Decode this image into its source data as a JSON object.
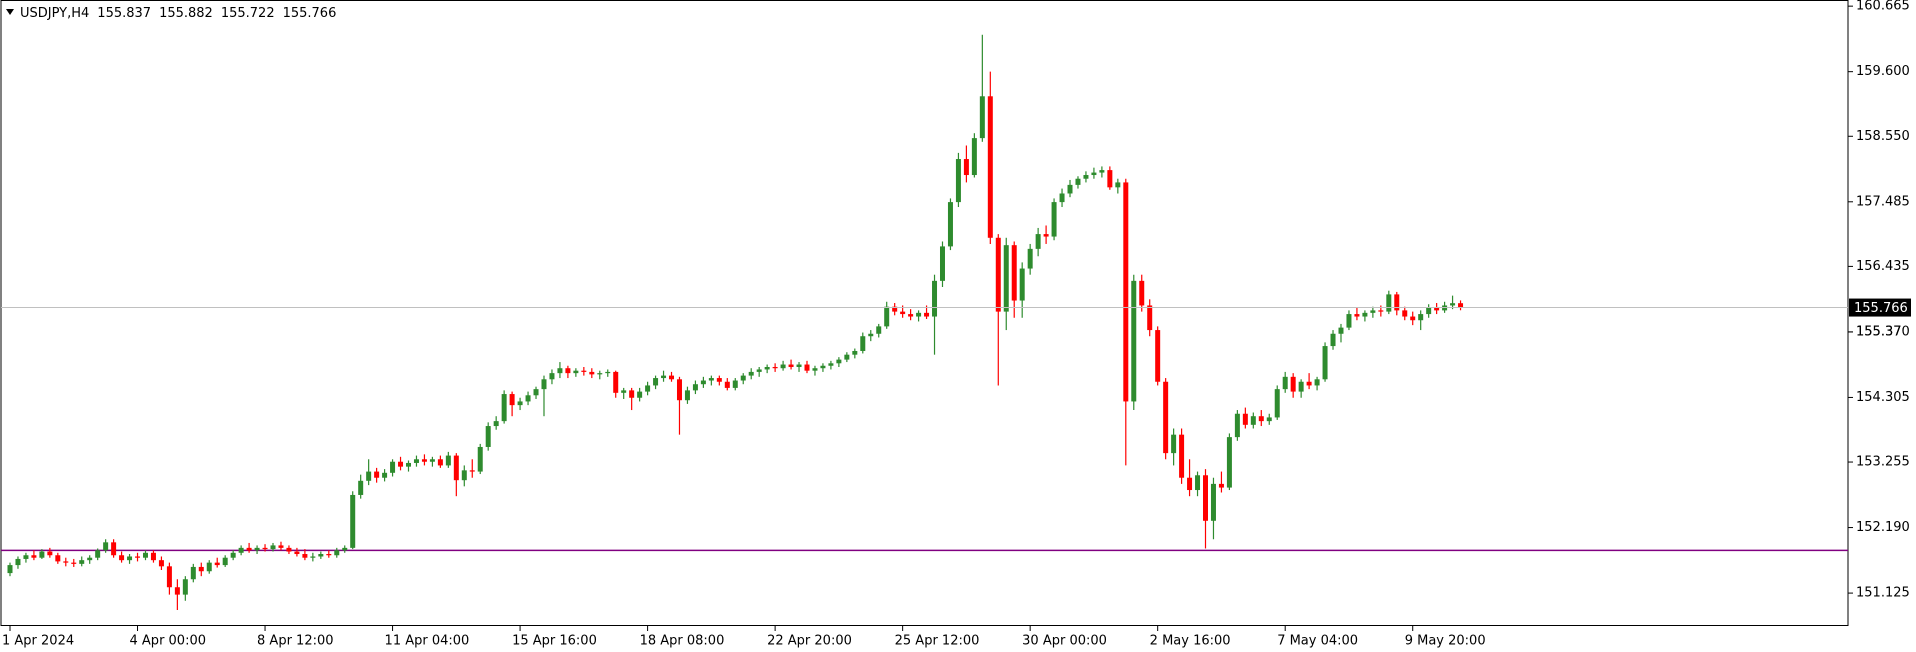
{
  "chart_data": {
    "type": "candlestick",
    "symbol": "USDJPY,H4",
    "up_color": "#2e8b2e",
    "down_color": "#ff0000",
    "price_line_color": "#c0c0c0",
    "level": 151.82,
    "level_color": "#800080",
    "ylim": [
      150.59,
      160.765
    ],
    "yticks": [
      151.125,
      {
        "value": 152.19,
        "label": "152.190"
      },
      153.255,
      154.305,
      155.37,
      {
        "value": 155.37,
        "label": "155.370"
      },
      156.435,
      157.485,
      {
        "value": 158.55,
        "label": "158.550"
      },
      {
        "value": 159.6,
        "label": "159.600"
      },
      160.665
    ],
    "xticks": [
      {
        "value": 0,
        "label": "1 Apr 2024"
      },
      {
        "value": 16,
        "label": "4 Apr 00:00"
      },
      {
        "value": 32,
        "label": "8 Apr 12:00"
      },
      {
        "value": 48,
        "label": "11 Apr 04:00"
      },
      {
        "value": 64,
        "label": "15 Apr 16:00"
      },
      {
        "value": 80,
        "label": "18 Apr 08:00"
      },
      {
        "value": 96,
        "label": "22 Apr 20:00"
      },
      {
        "value": 112,
        "label": "25 Apr 12:00"
      },
      {
        "value": 128,
        "label": "30 Apr 00:00"
      },
      {
        "value": 144,
        "label": "2 May 16:00"
      },
      {
        "value": 160,
        "label": "7 May 04:00"
      },
      {
        "value": 176,
        "label": "9 May 20:00"
      }
    ],
    "ohlc": [
      [
        151.45,
        151.62,
        151.4,
        151.58
      ],
      [
        151.58,
        151.72,
        151.52,
        151.68
      ],
      [
        151.68,
        151.78,
        151.62,
        151.74
      ],
      [
        151.74,
        151.82,
        151.66,
        151.7
      ],
      [
        151.7,
        151.84,
        151.68,
        151.8
      ],
      [
        151.8,
        151.86,
        151.7,
        151.74
      ],
      [
        151.74,
        151.78,
        151.6,
        151.64
      ],
      [
        151.64,
        151.7,
        151.56,
        151.62
      ],
      [
        151.62,
        151.68,
        151.55,
        151.6
      ],
      [
        151.6,
        151.72,
        151.56,
        151.66
      ],
      [
        151.66,
        151.74,
        151.6,
        151.7
      ],
      [
        151.7,
        151.85,
        151.66,
        151.82
      ],
      [
        151.82,
        152.0,
        151.78,
        151.95
      ],
      [
        151.95,
        152.0,
        151.7,
        151.74
      ],
      [
        151.74,
        151.8,
        151.62,
        151.66
      ],
      [
        151.66,
        151.76,
        151.6,
        151.72
      ],
      [
        151.72,
        151.78,
        151.64,
        151.7
      ],
      [
        151.7,
        151.82,
        151.66,
        151.78
      ],
      [
        151.78,
        151.82,
        151.62,
        151.66
      ],
      [
        151.66,
        151.72,
        151.5,
        151.56
      ],
      [
        151.56,
        151.62,
        151.1,
        151.22
      ],
      [
        151.22,
        151.35,
        150.85,
        151.1
      ],
      [
        151.1,
        151.4,
        151.0,
        151.35
      ],
      [
        151.35,
        151.6,
        151.3,
        151.55
      ],
      [
        151.55,
        151.62,
        151.4,
        151.48
      ],
      [
        151.48,
        151.66,
        151.44,
        151.62
      ],
      [
        151.62,
        151.7,
        151.54,
        151.58
      ],
      [
        151.58,
        151.74,
        151.55,
        151.7
      ],
      [
        151.7,
        151.82,
        151.66,
        151.78
      ],
      [
        151.78,
        151.9,
        151.74,
        151.86
      ],
      [
        151.86,
        151.94,
        151.78,
        151.82
      ],
      [
        151.82,
        151.9,
        151.76,
        151.86
      ],
      [
        151.86,
        151.92,
        151.8,
        151.84
      ],
      [
        151.84,
        151.94,
        151.8,
        151.9
      ],
      [
        151.9,
        151.96,
        151.82,
        151.86
      ],
      [
        151.86,
        151.9,
        151.76,
        151.8
      ],
      [
        151.8,
        151.86,
        151.72,
        151.76
      ],
      [
        151.76,
        151.84,
        151.66,
        151.7
      ],
      [
        151.7,
        151.78,
        151.64,
        151.72
      ],
      [
        151.72,
        151.8,
        151.68,
        151.76
      ],
      [
        151.76,
        151.82,
        151.7,
        151.74
      ],
      [
        151.74,
        151.86,
        151.7,
        151.82
      ],
      [
        151.82,
        151.9,
        151.78,
        151.86
      ],
      [
        151.86,
        152.78,
        151.84,
        152.72
      ],
      [
        152.72,
        153.05,
        152.66,
        152.95
      ],
      [
        152.95,
        153.3,
        152.88,
        153.1
      ],
      [
        153.1,
        153.16,
        152.92,
        153.0
      ],
      [
        153.0,
        153.14,
        152.94,
        153.08
      ],
      [
        153.08,
        153.3,
        153.02,
        153.26
      ],
      [
        153.26,
        153.34,
        153.12,
        153.18
      ],
      [
        153.18,
        153.28,
        153.1,
        153.24
      ],
      [
        153.24,
        153.36,
        153.18,
        153.3
      ],
      [
        153.3,
        153.38,
        153.2,
        153.26
      ],
      [
        153.26,
        153.34,
        153.18,
        153.3
      ],
      [
        153.3,
        153.36,
        153.16,
        153.2
      ],
      [
        153.2,
        153.42,
        153.16,
        153.36
      ],
      [
        153.36,
        153.4,
        152.7,
        152.96
      ],
      [
        152.96,
        153.2,
        152.86,
        153.12
      ],
      [
        153.12,
        153.3,
        153.0,
        153.1
      ],
      [
        153.1,
        153.55,
        153.06,
        153.5
      ],
      [
        153.5,
        153.9,
        153.44,
        153.84
      ],
      [
        153.84,
        154.0,
        153.78,
        153.92
      ],
      [
        153.92,
        154.42,
        153.88,
        154.36
      ],
      [
        154.36,
        154.4,
        154.0,
        154.18
      ],
      [
        154.18,
        154.3,
        154.1,
        154.24
      ],
      [
        154.24,
        154.4,
        154.18,
        154.34
      ],
      [
        154.34,
        154.48,
        154.28,
        154.44
      ],
      [
        154.44,
        154.66,
        154.0,
        154.6
      ],
      [
        154.6,
        154.76,
        154.52,
        154.7
      ],
      [
        154.7,
        154.88,
        154.62,
        154.78
      ],
      [
        154.78,
        154.82,
        154.62,
        154.7
      ],
      [
        154.7,
        154.78,
        154.64,
        154.74
      ],
      [
        154.74,
        154.8,
        154.66,
        154.72
      ],
      [
        154.72,
        154.78,
        154.62,
        154.68
      ],
      [
        154.68,
        154.74,
        154.6,
        154.7
      ],
      [
        154.7,
        154.76,
        154.64,
        154.72
      ],
      [
        154.72,
        154.74,
        154.3,
        154.38
      ],
      [
        154.38,
        154.46,
        154.28,
        154.42
      ],
      [
        154.42,
        154.46,
        154.1,
        154.3
      ],
      [
        154.3,
        154.46,
        154.24,
        154.4
      ],
      [
        154.4,
        154.56,
        154.34,
        154.5
      ],
      [
        154.5,
        154.66,
        154.44,
        154.62
      ],
      [
        154.62,
        154.74,
        154.56,
        154.66
      ],
      [
        154.66,
        154.72,
        154.56,
        154.6
      ],
      [
        154.6,
        154.64,
        153.7,
        154.26
      ],
      [
        154.26,
        154.48,
        154.2,
        154.42
      ],
      [
        154.42,
        154.58,
        154.36,
        154.52
      ],
      [
        154.52,
        154.64,
        154.46,
        154.58
      ],
      [
        154.58,
        154.66,
        154.5,
        154.62
      ],
      [
        154.62,
        154.66,
        154.5,
        154.56
      ],
      [
        154.56,
        154.62,
        154.42,
        154.46
      ],
      [
        154.46,
        154.62,
        154.42,
        154.58
      ],
      [
        154.58,
        154.7,
        154.52,
        154.66
      ],
      [
        154.66,
        154.78,
        154.6,
        154.72
      ],
      [
        154.72,
        154.8,
        154.64,
        154.76
      ],
      [
        154.76,
        154.84,
        154.7,
        154.8
      ],
      [
        154.8,
        154.86,
        154.72,
        154.78
      ],
      [
        154.78,
        154.9,
        154.74,
        154.84
      ],
      [
        154.84,
        154.92,
        154.76,
        154.8
      ],
      [
        154.8,
        154.88,
        154.72,
        154.84
      ],
      [
        154.84,
        154.9,
        154.7,
        154.74
      ],
      [
        154.74,
        154.82,
        154.66,
        154.78
      ],
      [
        154.78,
        154.86,
        154.72,
        154.82
      ],
      [
        154.82,
        154.9,
        154.76,
        154.86
      ],
      [
        154.86,
        154.96,
        154.8,
        154.92
      ],
      [
        154.92,
        155.04,
        154.88,
        155.0
      ],
      [
        155.0,
        155.1,
        154.94,
        155.06
      ],
      [
        155.06,
        155.36,
        155.02,
        155.3
      ],
      [
        155.3,
        155.4,
        155.22,
        155.34
      ],
      [
        155.34,
        155.5,
        155.28,
        155.46
      ],
      [
        155.46,
        155.86,
        155.42,
        155.78
      ],
      [
        155.78,
        155.84,
        155.64,
        155.7
      ],
      [
        155.7,
        155.8,
        155.6,
        155.66
      ],
      [
        155.66,
        155.74,
        155.56,
        155.62
      ],
      [
        155.62,
        155.72,
        155.54,
        155.68
      ],
      [
        155.68,
        155.8,
        155.58,
        155.62
      ],
      [
        155.62,
        156.3,
        155.0,
        156.2
      ],
      [
        156.2,
        156.84,
        156.1,
        156.76
      ],
      [
        156.76,
        157.54,
        156.7,
        157.48
      ],
      [
        157.48,
        158.28,
        157.4,
        158.18
      ],
      [
        158.18,
        158.4,
        157.8,
        157.92
      ],
      [
        157.92,
        158.6,
        157.88,
        158.52
      ],
      [
        158.52,
        160.2,
        158.46,
        159.2
      ],
      [
        159.2,
        159.6,
        156.8,
        156.9
      ],
      [
        156.9,
        156.96,
        154.5,
        155.7
      ],
      [
        155.7,
        156.9,
        155.4,
        156.78
      ],
      [
        156.78,
        156.84,
        155.6,
        155.88
      ],
      [
        155.88,
        156.5,
        155.6,
        156.4
      ],
      [
        156.4,
        156.8,
        156.3,
        156.72
      ],
      [
        156.72,
        157.06,
        156.6,
        156.96
      ],
      [
        156.96,
        157.1,
        156.8,
        156.92
      ],
      [
        156.92,
        157.54,
        156.86,
        157.48
      ],
      [
        157.48,
        157.7,
        157.4,
        157.62
      ],
      [
        157.62,
        157.84,
        157.56,
        157.76
      ],
      [
        157.76,
        157.9,
        157.7,
        157.86
      ],
      [
        157.86,
        157.98,
        157.8,
        157.92
      ],
      [
        157.92,
        158.04,
        157.86,
        157.96
      ],
      [
        157.96,
        158.06,
        157.88,
        158.0
      ],
      [
        158.0,
        158.06,
        157.68,
        157.72
      ],
      [
        157.72,
        157.86,
        157.62,
        157.8
      ],
      [
        157.8,
        157.86,
        153.2,
        154.24
      ],
      [
        154.24,
        156.3,
        154.1,
        156.2
      ],
      [
        156.2,
        156.3,
        155.7,
        155.8
      ],
      [
        155.8,
        155.9,
        155.3,
        155.4
      ],
      [
        155.4,
        155.46,
        154.5,
        154.56
      ],
      [
        154.56,
        154.62,
        153.3,
        153.4
      ],
      [
        153.4,
        153.8,
        153.2,
        153.7
      ],
      [
        153.7,
        153.8,
        152.9,
        153.0
      ],
      [
        153.0,
        153.3,
        152.7,
        152.8
      ],
      [
        152.8,
        153.1,
        152.7,
        153.04
      ],
      [
        153.04,
        153.14,
        151.85,
        152.3
      ],
      [
        152.3,
        153.0,
        152.0,
        152.9
      ],
      [
        152.9,
        153.1,
        152.76,
        152.84
      ],
      [
        152.84,
        153.72,
        152.8,
        153.66
      ],
      [
        153.66,
        154.1,
        153.6,
        154.04
      ],
      [
        154.04,
        154.14,
        153.8,
        153.86
      ],
      [
        153.86,
        154.06,
        153.8,
        154.0
      ],
      [
        154.0,
        154.1,
        153.84,
        153.92
      ],
      [
        153.92,
        154.04,
        153.86,
        153.98
      ],
      [
        153.98,
        154.5,
        153.94,
        154.44
      ],
      [
        154.44,
        154.72,
        154.38,
        154.64
      ],
      [
        154.64,
        154.7,
        154.3,
        154.4
      ],
      [
        154.4,
        154.6,
        154.3,
        154.56
      ],
      [
        154.56,
        154.7,
        154.44,
        154.5
      ],
      [
        154.5,
        154.64,
        154.42,
        154.6
      ],
      [
        154.6,
        155.2,
        154.56,
        155.14
      ],
      [
        155.14,
        155.4,
        155.08,
        155.34
      ],
      [
        155.34,
        155.5,
        155.2,
        155.44
      ],
      [
        155.44,
        155.72,
        155.4,
        155.66
      ],
      [
        155.66,
        155.76,
        155.56,
        155.62
      ],
      [
        155.62,
        155.72,
        155.54,
        155.68
      ],
      [
        155.68,
        155.78,
        155.6,
        155.72
      ],
      [
        155.72,
        155.8,
        155.62,
        155.7
      ],
      [
        155.7,
        156.04,
        155.66,
        155.98
      ],
      [
        155.98,
        156.02,
        155.64,
        155.72
      ],
      [
        155.72,
        155.78,
        155.56,
        155.62
      ],
      [
        155.62,
        155.7,
        155.48,
        155.56
      ],
      [
        155.56,
        155.72,
        155.4,
        155.66
      ],
      [
        155.66,
        155.82,
        155.6,
        155.76
      ],
      [
        155.76,
        155.84,
        155.66,
        155.72
      ],
      [
        155.72,
        155.86,
        155.68,
        155.8
      ],
      [
        155.8,
        155.96,
        155.74,
        155.837
      ],
      [
        155.837,
        155.882,
        155.722,
        155.766
      ]
    ]
  }
}
